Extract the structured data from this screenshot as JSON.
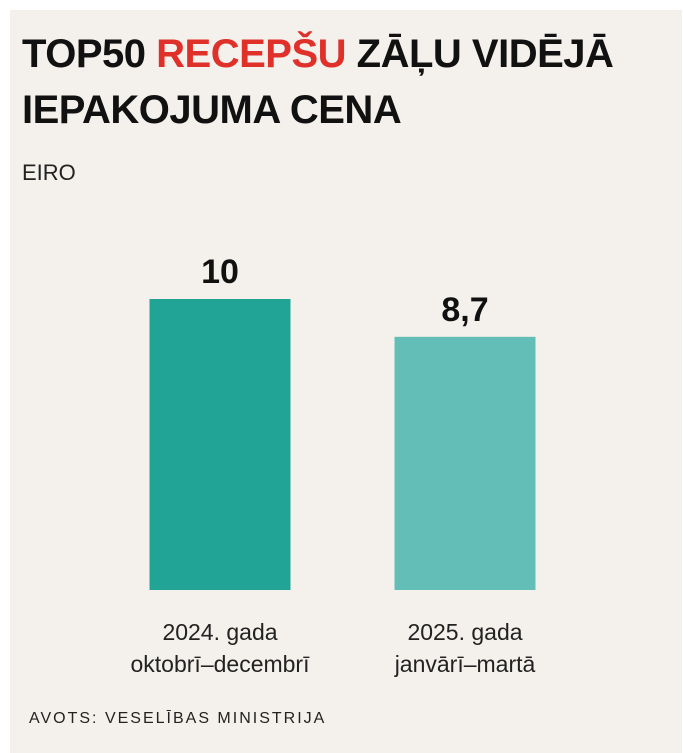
{
  "title": {
    "part1": "TOP50",
    "highlight": "RECEPŠU",
    "part2": "ZĀĻU VIDĒJĀ IEPAKOJUMA CENA"
  },
  "subtitle": "EIRO",
  "source": "AVOTS: VESELĪBAS MINISTRIJA",
  "colors": {
    "title_highlight": "#e0302a",
    "bar_1": "#21a396",
    "bar_2": "#62beb6",
    "background": "#f4f1ec"
  },
  "chart_data": {
    "type": "bar",
    "title": "TOP50 RECEPŠU ZĀĻU VIDĒJĀ IEPAKOJUMA CENA",
    "ylabel": "EIRO",
    "categories": [
      [
        "2024. gada",
        "oktobrī–decembrī"
      ],
      [
        "2025. gada",
        "janvārī–martā"
      ]
    ],
    "values": [
      10,
      8.7
    ],
    "value_labels": [
      "10",
      "8,7"
    ],
    "ylim": [
      0,
      10
    ],
    "grid": false,
    "legend": "none"
  }
}
